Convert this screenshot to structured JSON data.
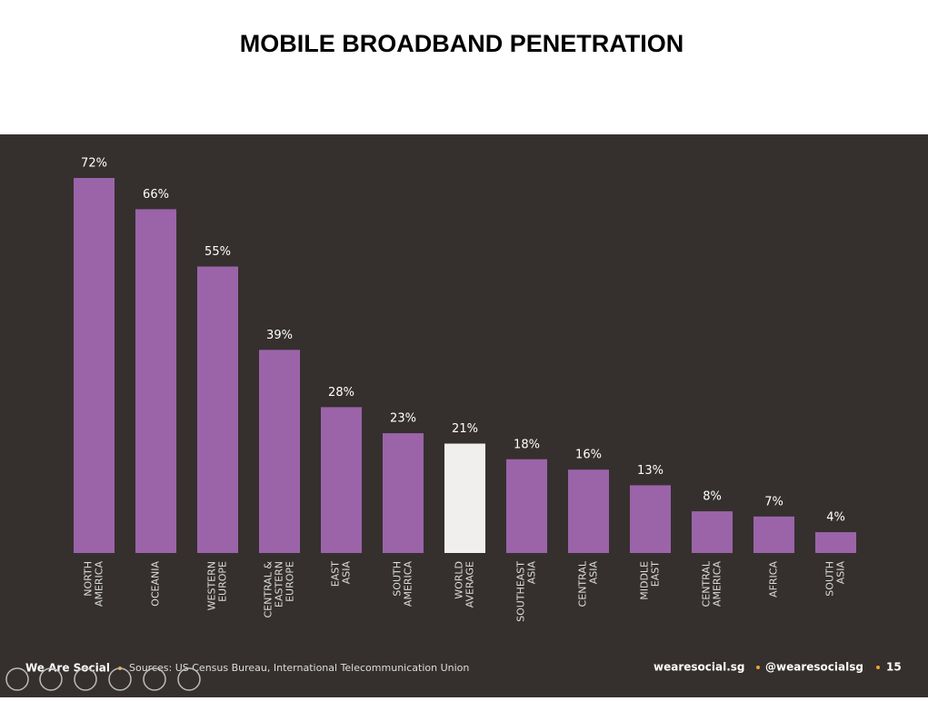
{
  "chart_data": {
    "type": "bar",
    "title": "MOBILE BROADBAND PENETRATION",
    "categories": [
      [
        "NORTH",
        "AMERICA"
      ],
      [
        "OCEANIA"
      ],
      [
        "WESTERN",
        "EUROPE"
      ],
      [
        "CENTRAL &",
        "EASTERN",
        "EUROPE"
      ],
      [
        "EAST",
        "ASIA"
      ],
      [
        "SOUTH",
        "AMERICA"
      ],
      [
        "WORLD",
        "AVERAGE"
      ],
      [
        "SOUTHEAST",
        "ASIA"
      ],
      [
        "CENTRAL",
        "ASIA"
      ],
      [
        "MIDDLE",
        "EAST"
      ],
      [
        "CENTRAL",
        "AMERICA"
      ],
      [
        "AFRICA"
      ],
      [
        "SOUTH",
        "ASIA"
      ]
    ],
    "values": [
      72,
      66,
      55,
      39,
      28,
      23,
      21,
      18,
      16,
      13,
      8,
      7,
      4
    ],
    "value_labels": [
      "72%",
      "66%",
      "55%",
      "39%",
      "28%",
      "23%",
      "21%",
      "18%",
      "16%",
      "13%",
      "8%",
      "7%",
      "4%"
    ],
    "colors": [
      "#9b64a9",
      "#9b64a9",
      "#9b64a9",
      "#9b64a9",
      "#9b64a9",
      "#9b64a9",
      "#f1efed",
      "#9b64a9",
      "#9b64a9",
      "#9b64a9",
      "#9b64a9",
      "#9b64a9",
      "#9b64a9"
    ],
    "footer": {
      "brand": "We Are Social",
      "source": "Sources: US Census Bureau, International Telecommunication Union",
      "site": "wearesocial.sg",
      "handle": "@wearesocialsg",
      "page": "15"
    }
  }
}
